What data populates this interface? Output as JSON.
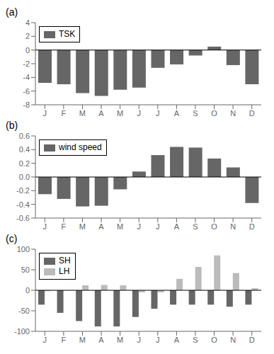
{
  "chart_data": [
    {
      "type": "bar",
      "title": "(a)",
      "categories": [
        "J",
        "F",
        "M",
        "A",
        "M",
        "J",
        "J",
        "A",
        "S",
        "O",
        "N",
        "D"
      ],
      "series": [
        {
          "name": "TSK",
          "color": "#666666",
          "values": [
            -4.8,
            -5.0,
            -6.3,
            -6.7,
            -5.8,
            -5.5,
            -2.6,
            -2.1,
            -0.8,
            0.5,
            -2.2,
            -5.0
          ]
        }
      ],
      "ylim": [
        -8,
        4
      ],
      "yticks": [
        -8,
        -6,
        -4,
        -2,
        0,
        2,
        4
      ],
      "grid": false,
      "legend": "upper left"
    },
    {
      "type": "bar",
      "title": "(b)",
      "categories": [
        "J",
        "F",
        "M",
        "A",
        "M",
        "J",
        "J",
        "A",
        "S",
        "O",
        "N",
        "D"
      ],
      "series": [
        {
          "name": "wind speed",
          "color": "#666666",
          "values": [
            -0.25,
            -0.32,
            -0.43,
            -0.42,
            -0.18,
            0.08,
            0.32,
            0.44,
            0.43,
            0.27,
            0.14,
            -0.38
          ]
        }
      ],
      "ylim": [
        -0.6,
        0.6
      ],
      "yticks": [
        -0.6,
        -0.4,
        -0.2,
        {
          "value": 0,
          "label": "0.0"
        },
        0.2,
        0.4,
        0.6
      ],
      "grid": false,
      "legend": "upper left"
    },
    {
      "type": "bar",
      "title": "(c)",
      "categories": [
        "J",
        "F",
        "M",
        "A",
        "M",
        "J",
        "J",
        "A",
        "S",
        "O",
        "N",
        "D"
      ],
      "series": [
        {
          "name": "SH",
          "color": "#666666",
          "values": [
            -35,
            -55,
            -75,
            -88,
            -88,
            -65,
            -45,
            -35,
            -35,
            -35,
            -40,
            -35
          ]
        },
        {
          "name": "LH",
          "color": "#bbbbbb",
          "values": [
            -2,
            0,
            12,
            13,
            12,
            -5,
            -5,
            28,
            57,
            85,
            42,
            5
          ]
        }
      ],
      "ylim": [
        -100,
        100
      ],
      "yticks": [
        -100,
        -50,
        0,
        50,
        100
      ],
      "grid": false,
      "legend": "upper left"
    }
  ]
}
